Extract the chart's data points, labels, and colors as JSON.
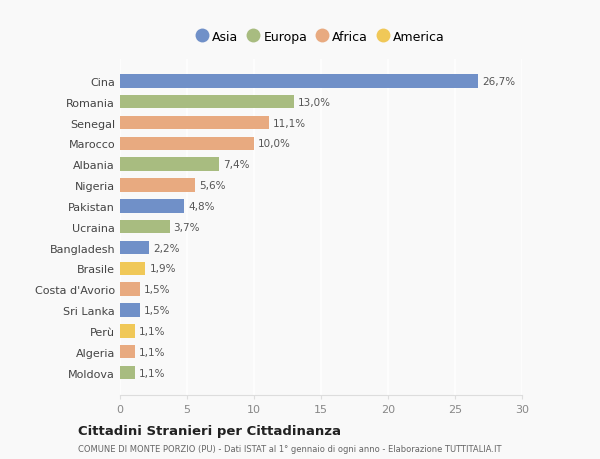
{
  "countries": [
    "Cina",
    "Romania",
    "Senegal",
    "Marocco",
    "Albania",
    "Nigeria",
    "Pakistan",
    "Ucraina",
    "Bangladesh",
    "Brasile",
    "Costa d'Avorio",
    "Sri Lanka",
    "Perù",
    "Algeria",
    "Moldova"
  ],
  "values": [
    26.7,
    13.0,
    11.1,
    10.0,
    7.4,
    5.6,
    4.8,
    3.7,
    2.2,
    1.9,
    1.5,
    1.5,
    1.1,
    1.1,
    1.1
  ],
  "labels": [
    "26,7%",
    "13,0%",
    "11,1%",
    "10,0%",
    "7,4%",
    "5,6%",
    "4,8%",
    "3,7%",
    "2,2%",
    "1,9%",
    "1,5%",
    "1,5%",
    "1,1%",
    "1,1%",
    "1,1%"
  ],
  "bar_colors": [
    "#7090c8",
    "#a8bc80",
    "#e8aa80",
    "#e8aa80",
    "#a8bc80",
    "#e8aa80",
    "#7090c8",
    "#a8bc80",
    "#7090c8",
    "#f0c858",
    "#e8aa80",
    "#7090c8",
    "#f0c858",
    "#e8aa80",
    "#a8bc80"
  ],
  "xlim": [
    0,
    30
  ],
  "xticks": [
    0,
    5,
    10,
    15,
    20,
    25,
    30
  ],
  "background_color": "#f9f9f9",
  "grid_color": "#ffffff",
  "label_color": "#555555",
  "tick_color": "#888888",
  "title": "Cittadini Stranieri per Cittadinanza",
  "subtitle": "COMUNE DI MONTE PORZIO (PU) - Dati ISTAT al 1° gennaio di ogni anno - Elaborazione TUTTITALIA.IT",
  "legend_labels": [
    "Asia",
    "Europa",
    "Africa",
    "America"
  ],
  "legend_colors": [
    "#7090c8",
    "#a8bc80",
    "#e8aa80",
    "#f0c858"
  ]
}
